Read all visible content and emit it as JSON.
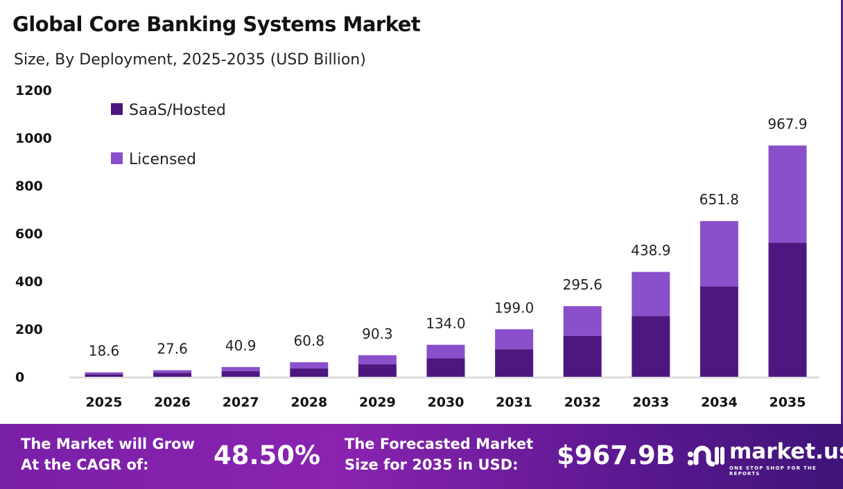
{
  "title": "Global Core Banking Systems Market",
  "subtitle": "Size, By Deployment, 2025-2035 (USD Billion)",
  "colors": {
    "saas": "#4E1780",
    "licensed": "#8A4FCB"
  },
  "chart_data": {
    "type": "bar",
    "stacked": true,
    "categories": [
      "2025",
      "2026",
      "2027",
      "2028",
      "2029",
      "2030",
      "2031",
      "2032",
      "2033",
      "2034",
      "2035"
    ],
    "series": [
      {
        "name": "SaaS/Hosted",
        "values": [
          10.8,
          16.0,
          23.7,
          35.3,
          52.4,
          77.7,
          115.4,
          171.4,
          254.6,
          378.0,
          561.4
        ]
      },
      {
        "name": "Licensed",
        "values": [
          7.8,
          11.6,
          17.2,
          25.5,
          37.9,
          56.3,
          83.6,
          124.2,
          184.3,
          273.8,
          406.5
        ]
      }
    ],
    "totals": [
      "18.6",
      "27.6",
      "40.9",
      "60.8",
      "90.3",
      "134.0",
      "199.0",
      "295.6",
      "438.9",
      "651.8",
      "967.9"
    ],
    "yticks": [
      "0",
      "200",
      "400",
      "600",
      "800",
      "1000",
      "1200"
    ],
    "ylim": [
      0,
      1200
    ],
    "grid": false,
    "legend": "top-left"
  },
  "footer": {
    "cagr_label": "The Market will Grow At the CAGR of:",
    "cagr_line1": "The Market will Grow",
    "cagr_line2": "At the CAGR of:",
    "cagr_value": "48.50%",
    "forecast_line1": "The Forecasted Market",
    "forecast_line2": "Size for 2035 in USD:",
    "forecast_value": "$967.9B",
    "logo": "market.us",
    "logo_tagline": "ONE STOP SHOP FOR THE REPORTS"
  }
}
